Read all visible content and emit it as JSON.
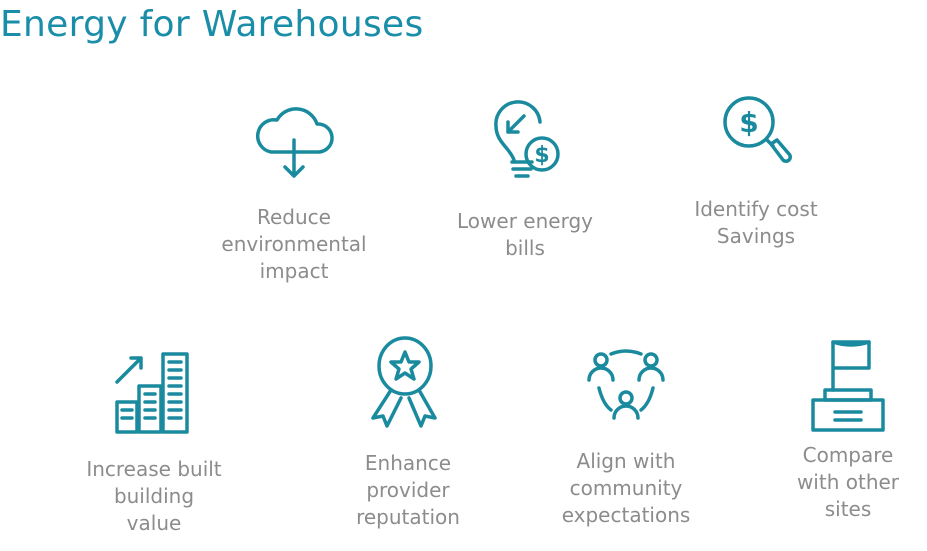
{
  "title": "Energy for Warehouses",
  "accent_color": "#1a8ea8",
  "text_color": "#8c8c8c",
  "benefits": [
    {
      "icon": "cloud-download-icon",
      "label": "Reduce\nenvironmental\nimpact"
    },
    {
      "icon": "lightbulb-dollar-icon",
      "label": "Lower energy\nbills"
    },
    {
      "icon": "magnifier-dollar-icon",
      "label": "Identify cost\nSavings"
    },
    {
      "icon": "buildings-growth-icon",
      "label": "Increase built\nbuilding\nvalue"
    },
    {
      "icon": "award-ribbon-icon",
      "label": "Enhance\nprovider\nreputation"
    },
    {
      "icon": "community-people-icon",
      "label": "Align with\ncommunity\nexpectations"
    },
    {
      "icon": "flag-podium-icon",
      "label": "Compare\nwith other\nsites"
    }
  ]
}
